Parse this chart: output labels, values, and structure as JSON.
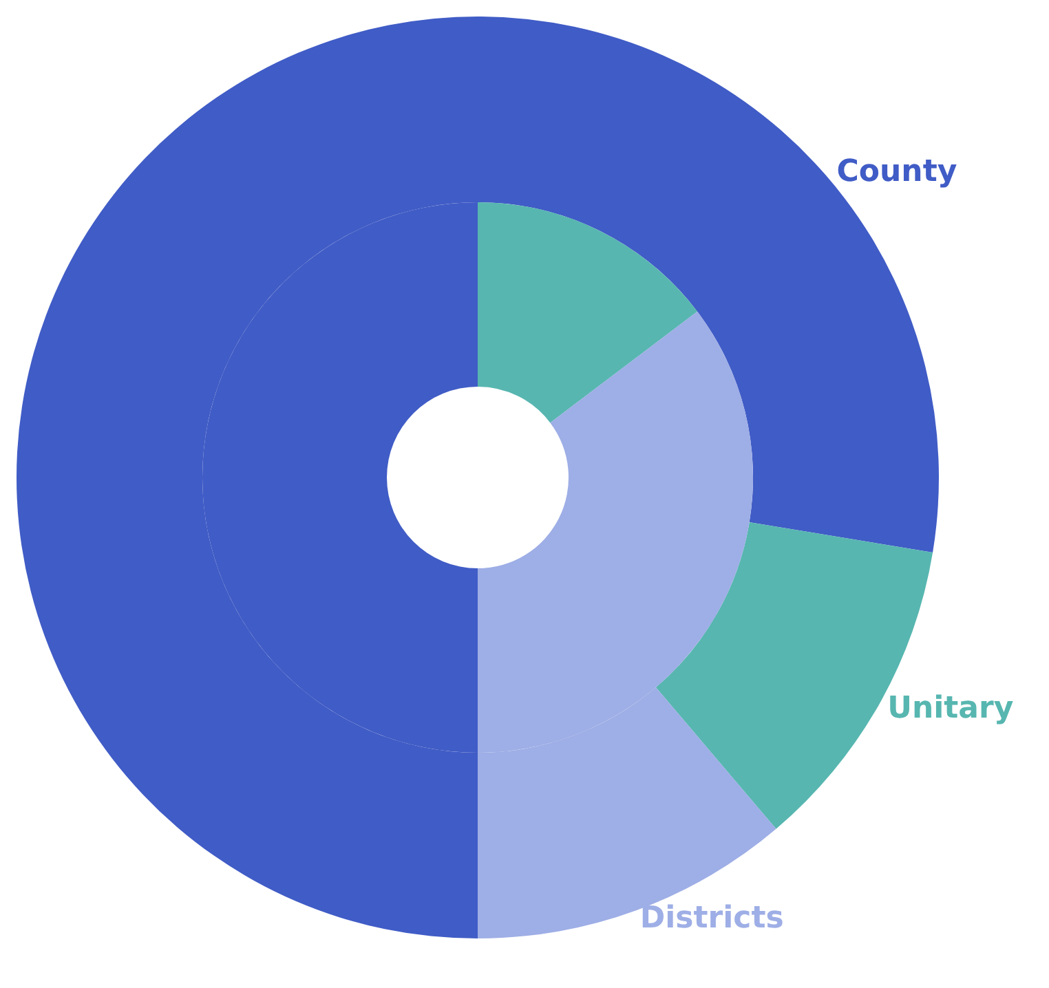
{
  "chart_data": {
    "type": "donut",
    "categories": [
      "County",
      "Unitary",
      "Districts"
    ],
    "colors": [
      "#405cc6",
      "#57b6b0",
      "#9eaee6"
    ],
    "series": [
      {
        "values": [
          77.6,
          11.2,
          11.2
        ]
      },
      {
        "values": [
          50,
          14.7,
          35.3
        ]
      }
    ]
  }
}
